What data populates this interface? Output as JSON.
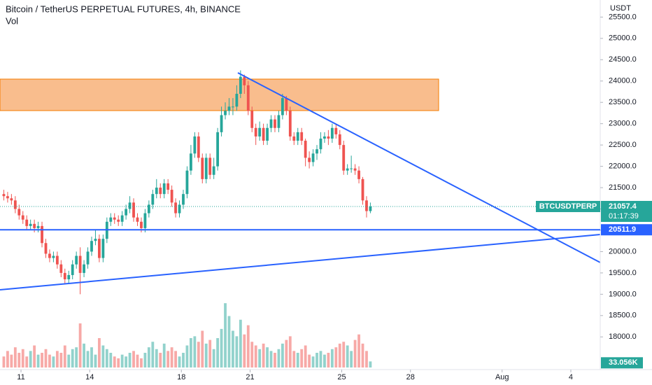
{
  "chart_data": {
    "type": "candlestick",
    "title": "Bitcoin / TetherUS PERPETUAL FUTURES, 4h, BINANCE",
    "volume_title": "Vol",
    "currency": "USDT",
    "symbol": "BTCUSDTPERP",
    "countdown": "01:17:39",
    "up_color": "#26a69a",
    "down_color": "#ef5350",
    "open": [
      21350,
      21300,
      21250,
      21200,
      21000,
      20850,
      20750,
      20600,
      20650,
      20550,
      20600,
      20200,
      19950,
      19850,
      19900,
      19700,
      19500,
      19350,
      19450,
      19700,
      19900,
      19500,
      19700,
      20000,
      20250,
      20300,
      19850,
      20300,
      20700,
      20800,
      20750,
      20700,
      20850,
      21000,
      21150,
      20800,
      20700,
      20550,
      20900,
      21100,
      21350,
      21500,
      21350,
      21600,
      21450,
      21150,
      20900,
      21100,
      21350,
      21900,
      22300,
      22700,
      22200,
      21700,
      22200,
      21800,
      22000,
      22800,
      23200,
      23300,
      23400,
      23400,
      23700,
      24100,
      23900,
      23300,
      22900,
      22700,
      22900,
      22600,
      22900,
      23100,
      22900,
      23200,
      23600,
      23300,
      22700,
      22600,
      22800,
      22600,
      22200,
      22100,
      22300,
      22400,
      22650,
      22700,
      22650,
      22900,
      22750,
      22500,
      21900,
      21950,
      21950,
      21900,
      21700,
      21200,
      20950
    ],
    "high": [
      21450,
      21400,
      21350,
      21300,
      21100,
      20950,
      20850,
      20750,
      20750,
      20700,
      20700,
      20300,
      20050,
      20000,
      20000,
      19800,
      19600,
      19550,
      19800,
      20000,
      20100,
      19800,
      20100,
      20350,
      20500,
      20400,
      20400,
      20800,
      20900,
      20900,
      20850,
      20950,
      21100,
      21300,
      21250,
      20900,
      20800,
      21000,
      21200,
      21450,
      21700,
      21600,
      21700,
      21700,
      21550,
      21250,
      21200,
      21450,
      22000,
      22500,
      22800,
      22800,
      22300,
      22300,
      22300,
      22200,
      22900,
      23400,
      23500,
      23600,
      23600,
      23900,
      24250,
      24150,
      24000,
      23400,
      23000,
      23050,
      23000,
      23000,
      23200,
      23200,
      23300,
      23700,
      23650,
      23400,
      22800,
      22900,
      22900,
      22650,
      22350,
      22400,
      22500,
      22800,
      22800,
      22850,
      23000,
      23000,
      22850,
      22600,
      22050,
      22250,
      22050,
      22000,
      21750,
      21300,
      21150
    ],
    "low": [
      21200,
      21150,
      21100,
      20900,
      20750,
      20650,
      20500,
      20500,
      20450,
      20450,
      20100,
      19850,
      19750,
      19750,
      19600,
      19400,
      19250,
      19250,
      19350,
      19600,
      19000,
      19400,
      19600,
      19900,
      20150,
      19750,
      19750,
      20200,
      20600,
      20650,
      20600,
      20600,
      20750,
      20900,
      20700,
      20600,
      20450,
      20450,
      20800,
      21000,
      21250,
      21250,
      21250,
      21350,
      21050,
      20800,
      20800,
      21000,
      21250,
      21800,
      22200,
      22100,
      21600,
      21600,
      21700,
      21700,
      21900,
      22700,
      23100,
      23200,
      23200,
      23300,
      23600,
      23700,
      23200,
      22800,
      22500,
      22600,
      22500,
      22500,
      22800,
      22800,
      22800,
      23100,
      23200,
      22600,
      22500,
      22500,
      22500,
      22000,
      21950,
      22000,
      22150,
      22300,
      22550,
      22500,
      22550,
      22650,
      22400,
      21800,
      21800,
      21850,
      21800,
      21600,
      21100,
      20800,
      20900
    ],
    "close": [
      21300,
      21250,
      21200,
      21000,
      20850,
      20750,
      20600,
      20650,
      20550,
      20600,
      20200,
      19950,
      19850,
      19900,
      19700,
      19500,
      19350,
      19450,
      19700,
      19900,
      19500,
      19700,
      20000,
      20250,
      20300,
      19850,
      20300,
      20700,
      20800,
      20750,
      20700,
      20850,
      21000,
      21150,
      20800,
      20700,
      20550,
      20900,
      21100,
      21350,
      21500,
      21350,
      21600,
      21450,
      21150,
      20900,
      21100,
      21350,
      21900,
      22300,
      22700,
      22200,
      21700,
      22200,
      21800,
      22000,
      22800,
      23200,
      23300,
      23400,
      23400,
      23700,
      24100,
      23900,
      23300,
      22900,
      22700,
      22900,
      22600,
      22900,
      23100,
      22900,
      23200,
      23600,
      23300,
      22700,
      22600,
      22800,
      22600,
      22200,
      22100,
      22300,
      22400,
      22650,
      22700,
      22650,
      22900,
      22750,
      22500,
      21900,
      21950,
      21950,
      21900,
      21700,
      21200,
      20950,
      21057.4
    ],
    "volume": [
      60000,
      90000,
      70000,
      110000,
      80000,
      100000,
      60000,
      90000,
      120000,
      70000,
      80000,
      100000,
      70000,
      60000,
      90000,
      80000,
      120000,
      70000,
      100000,
      110000,
      240000,
      130000,
      90000,
      110000,
      70000,
      160000,
      120000,
      100000,
      80000,
      60000,
      50000,
      70000,
      60000,
      80000,
      90000,
      70000,
      50000,
      80000,
      110000,
      140000,
      100000,
      80000,
      130000,
      90000,
      110000,
      90000,
      60000,
      80000,
      120000,
      160000,
      170000,
      140000,
      200000,
      130000,
      150000,
      100000,
      160000,
      210000,
      350000,
      280000,
      200000,
      170000,
      260000,
      180000,
      230000,
      140000,
      120000,
      100000,
      130000,
      110000,
      90000,
      80000,
      100000,
      130000,
      150000,
      170000,
      90000,
      80000,
      100000,
      120000,
      70000,
      60000,
      80000,
      90000,
      70000,
      80000,
      100000,
      110000,
      130000,
      140000,
      120000,
      90000,
      150000,
      180000,
      130000,
      90000,
      33056
    ],
    "volume_value_label": "33.056K",
    "volume_lim": [
      0,
      2000000
    ],
    "hline": {
      "value": 20511.9,
      "color": "#2962ff"
    },
    "xlim": [
      -1,
      156.2
    ],
    "xticks": [
      {
        "value": 4.5,
        "label": "11"
      },
      {
        "value": 22.5,
        "label": "14"
      },
      {
        "value": 46.5,
        "label": "18"
      },
      {
        "value": 64.5,
        "label": "21"
      },
      {
        "value": 88.5,
        "label": "25"
      },
      {
        "value": 106.5,
        "label": "28"
      },
      {
        "value": 130.5,
        "label": "Aug"
      },
      {
        "value": 148.5,
        "label": "4"
      }
    ],
    "ylim": [
      17200,
      25900
    ],
    "yticks": [
      {
        "value": 18000,
        "label": "18000.0"
      },
      {
        "value": 18500,
        "label": "18500.0"
      },
      {
        "value": 19000,
        "label": "19000.0"
      },
      {
        "value": 19500,
        "label": "19500.0"
      },
      {
        "value": 20000,
        "label": "20000.0"
      },
      {
        "value": 20500,
        "label": "20500.0"
      },
      {
        "value": 21000,
        "label": "21000.0"
      },
      {
        "value": 21500,
        "label": "21500.0"
      },
      {
        "value": 22000,
        "label": "22000.0"
      },
      {
        "value": 22500,
        "label": "22500.0"
      },
      {
        "value": 23000,
        "label": "23000.0"
      },
      {
        "value": 23500,
        "label": "23500.0"
      },
      {
        "value": 24000,
        "label": "24000.0"
      },
      {
        "value": 24500,
        "label": "24500.0"
      },
      {
        "value": 25000,
        "label": "25000.0"
      },
      {
        "value": 25500,
        "label": "25500.0"
      }
    ]
  }
}
